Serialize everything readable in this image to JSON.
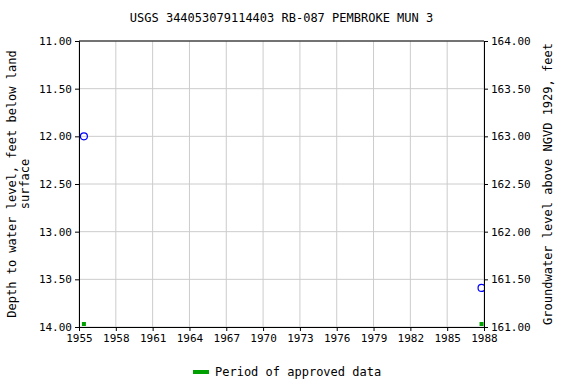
{
  "chart_data": {
    "type": "scatter",
    "title": "USGS 344053079114403 RB-087 PEMBROKE MUN 3",
    "ylabel": [
      "Depth to water level, feet below land",
      "surface"
    ],
    "y2label": "Groundwater level above NGVD 1929, feet",
    "x": [
      1955.4,
      1987.8
    ],
    "series": [
      {
        "color": "#0000ff",
        "marker": "circle-open",
        "values": [
          12.0,
          13.59
        ]
      },
      {
        "name": "Period of approved data",
        "type": "period",
        "color": "#00a000",
        "marker": "square",
        "x": [
          1955.4,
          1987.8
        ]
      }
    ],
    "xlim": [
      1955,
      1988
    ],
    "xticks": [
      1955,
      1958,
      1961,
      1964,
      1967,
      1970,
      1973,
      1976,
      1979,
      1982,
      1985,
      1988
    ],
    "ylim": [
      14,
      11
    ],
    "yticks": [
      {
        "value": 11,
        "label": "11.00"
      },
      {
        "value": 11.5,
        "label": "11.50"
      },
      {
        "value": 12,
        "label": "12.00"
      },
      {
        "value": 12.5,
        "label": "12.50"
      },
      {
        "value": 13,
        "label": "13.00"
      },
      {
        "value": 13.5,
        "label": "13.50"
      },
      {
        "value": 14,
        "label": "14.00"
      }
    ],
    "y2lim": [
      161,
      164
    ],
    "y2ticks": [
      {
        "value": 164,
        "label": "164.00"
      },
      {
        "value": 163.5,
        "label": "163.50"
      },
      {
        "value": 163,
        "label": "163.00"
      },
      {
        "value": 162.5,
        "label": "162.50"
      },
      {
        "value": 162,
        "label": "162.00"
      },
      {
        "value": 161.5,
        "label": "161.50"
      },
      {
        "value": 161,
        "label": "161.00"
      }
    ],
    "grid": true,
    "legend": "bottom"
  }
}
